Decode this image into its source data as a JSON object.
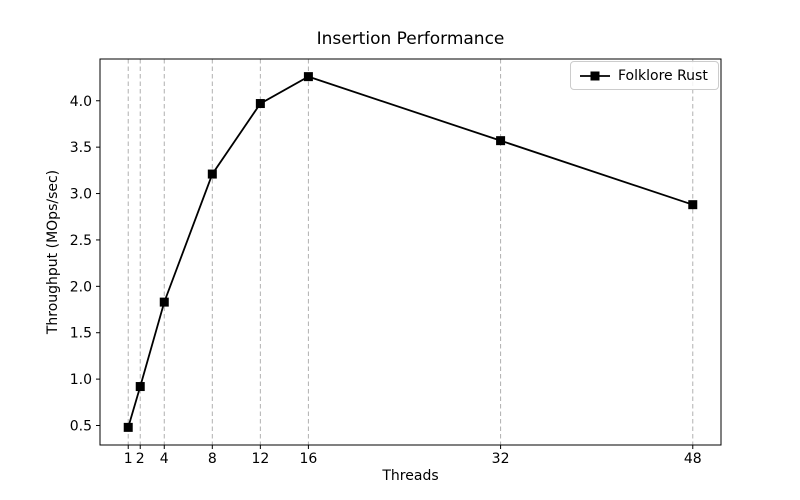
{
  "chart_data": {
    "type": "line",
    "title": "Insertion Performance",
    "xlabel": "Threads",
    "ylabel": "Throughput (MOps/sec)",
    "x": [
      1,
      2,
      4,
      8,
      12,
      16,
      32,
      48
    ],
    "series": [
      {
        "name": "Folklore Rust",
        "values": [
          0.48,
          0.92,
          1.83,
          3.21,
          3.97,
          4.26,
          3.57,
          2.88
        ],
        "color": "#000000",
        "marker": "square"
      }
    ],
    "xticks": [
      1,
      2,
      4,
      8,
      12,
      16,
      32,
      48
    ],
    "yticks": [
      0.5,
      1.0,
      1.5,
      2.0,
      2.5,
      3.0,
      3.5,
      4.0
    ],
    "xlim": [
      -1.35,
      50.35
    ],
    "ylim": [
      0.29,
      4.45
    ],
    "grid": "vertical-dashed-at-xticks",
    "gridline_color": "#b0b0b0",
    "spine_color": "#000000",
    "legend_position": "upper right",
    "legend_entries": [
      "Folklore Rust"
    ]
  }
}
